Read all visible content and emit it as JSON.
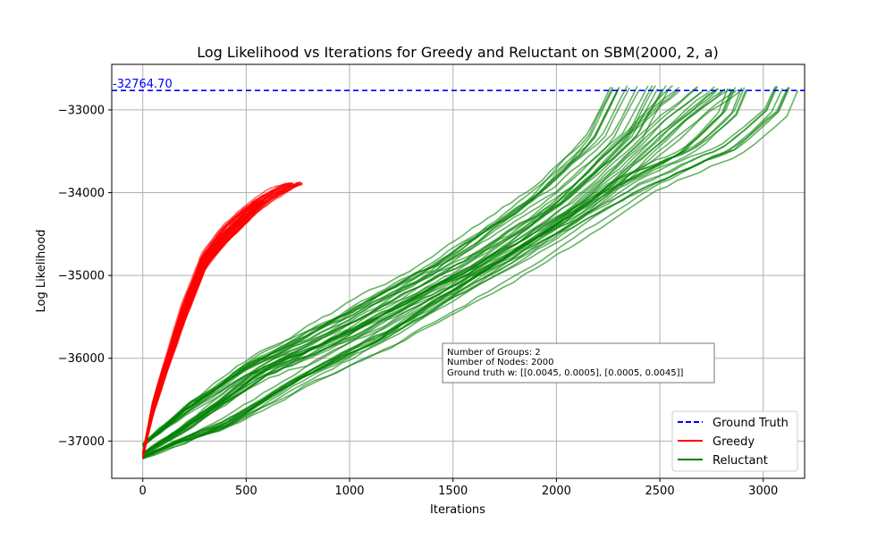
{
  "chart_data": {
    "type": "line",
    "title": "Log Likelihood vs Iterations for Greedy and Reluctant on SBM(2000, 2, a)",
    "xlabel": "Iterations",
    "ylabel": "Log Likelihood",
    "xlim": [
      -150,
      3200
    ],
    "ylim": [
      -37450,
      -32450
    ],
    "xticks": [
      0,
      500,
      1000,
      1500,
      2000,
      2500,
      3000
    ],
    "yticks": [
      -37000,
      -36000,
      -35000,
      -34000,
      -33000
    ],
    "xtick_labels": [
      "0",
      "500",
      "1000",
      "1500",
      "2000",
      "2500",
      "3000"
    ],
    "ytick_labels": [
      "−37000",
      "−36000",
      "−35000",
      "−34000",
      "−33000"
    ],
    "grid": true,
    "legend_position": "lower-right",
    "ground_truth": {
      "value": -32764.7,
      "label": "-32764.70",
      "color": "#0000ff",
      "style": "dashed"
    },
    "series": [
      {
        "name": "Ground Truth",
        "color": "#0000ff",
        "style": "dashed"
      },
      {
        "name": "Greedy",
        "color": "#ff0000",
        "num_runs": 50,
        "representative_runs": [
          {
            "x": [
              0,
              50,
              100,
              200,
              300,
              400,
              500,
              575
            ],
            "y": [
              -37200,
              -36650,
              -36250,
              -35500,
              -34850,
              -34550,
              -34320,
              -34100
            ]
          },
          {
            "x": [
              0,
              50,
              100,
              200,
              300,
              400,
              500,
              600,
              650,
              700,
              740
            ],
            "y": [
              -37150,
              -36550,
              -36150,
              -35400,
              -34800,
              -34480,
              -34250,
              -34070,
              -34000,
              -33930,
              -33880
            ]
          }
        ]
      },
      {
        "name": "Reluctant",
        "color": "#008000",
        "num_runs": 50,
        "representative_runs": [
          {
            "x": [
              0,
              200,
              400,
              600,
              800,
              1000,
              1200,
              1500,
              1800,
              2000,
              2200,
              2400,
              2600,
              2750
            ],
            "y": [
              -37150,
              -36850,
              -36500,
              -36150,
              -35950,
              -35700,
              -35450,
              -35050,
              -34650,
              -34350,
              -33950,
              -33500,
              -33050,
              -32750
            ]
          },
          {
            "x": [
              0,
              200,
              500,
              1000,
              1500,
              2000,
              2300,
              2430
            ],
            "y": [
              -37050,
              -36650,
              -36150,
              -35550,
              -34900,
              -34050,
              -33350,
              -32720
            ]
          },
          {
            "x": [
              0,
              400,
              800,
              1200,
              1600,
              2000,
              2400,
              2800,
              3000,
              3040
            ],
            "y": [
              -37200,
              -36800,
              -36200,
              -35700,
              -35100,
              -34500,
              -33900,
              -33450,
              -33000,
              -32730
            ]
          }
        ]
      }
    ],
    "annotation_box": [
      "Number of Groups: 2",
      "Number of Nodes: 2000",
      "Ground truth w: [[0.0045, 0.0005], [0.0005, 0.0045]]"
    ]
  }
}
